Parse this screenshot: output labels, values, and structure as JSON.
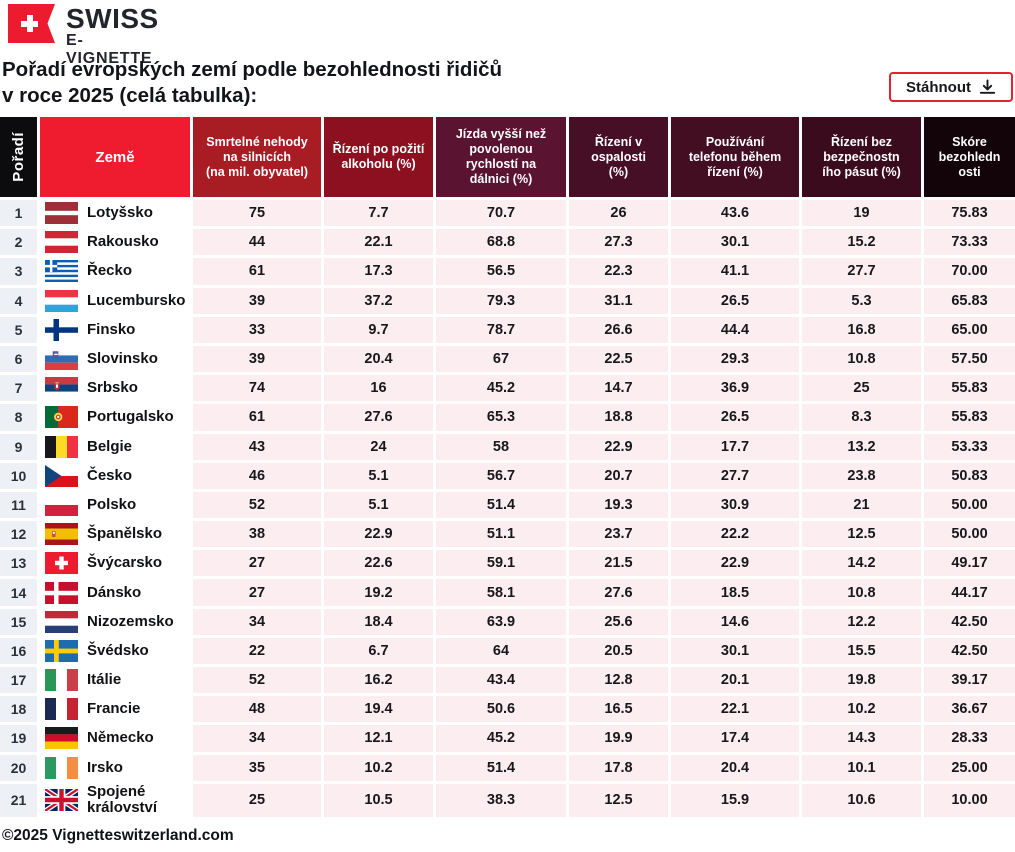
{
  "logo": {
    "line1": "SWISS",
    "line2": "E-VIGNETTE"
  },
  "title": {
    "line1": "Pořadí evropských zemí podle bezohlednosti řidičů",
    "line2": "v roce 2025 (celá tabulka):"
  },
  "download": {
    "label": "Stáhnout"
  },
  "footer": {
    "copyright": "©2025 Vignetteswitzerland.com"
  },
  "colors": {
    "brand_red": "#ed1b2f",
    "button_border": "#e32230",
    "rank_cell_bg": "#edf1f6",
    "value_cell_bg": "#fcedf0",
    "header_black": "#0c0c0e"
  },
  "table": {
    "columns": [
      {
        "id": "rank",
        "label": "Pořadí",
        "bg": "#0c0c0e",
        "vertical": true
      },
      {
        "id": "country",
        "label": "Země",
        "bg": "#ee1c2e",
        "big": true
      },
      {
        "id": "fatal",
        "lines": [
          "Smrtelné nehody",
          "na silnicích",
          "(na mil. obyvatel)"
        ],
        "bg": "#a81c24"
      },
      {
        "id": "alcohol",
        "lines": [
          "Řízení po požití",
          "alkoholu (%)"
        ],
        "bg": "#8c101f"
      },
      {
        "id": "speed",
        "lines": [
          "Jízda vyšší než",
          "povolenou",
          "rychlostí na",
          "dálnici (%)"
        ],
        "bg": "#5a1330"
      },
      {
        "id": "drowsy",
        "lines": [
          "Řízení v",
          "ospalosti",
          "(%)"
        ],
        "bg": "#470f25"
      },
      {
        "id": "phone",
        "lines": [
          "Používání",
          "telefonu během",
          "řízení (%)"
        ],
        "bg": "#430e22"
      },
      {
        "id": "seatbelt",
        "lines": [
          "Řízení bez",
          "bezpečnostn",
          "ího pásut (%)"
        ],
        "bg": "#3a0b1c"
      },
      {
        "id": "score",
        "lines": [
          "Skóre",
          "bezohledn",
          "osti"
        ],
        "bg": "#130409"
      }
    ],
    "rows": [
      {
        "rank": "1",
        "country": "Lotyšsko",
        "flag": "lv",
        "values": [
          "75",
          "7.7",
          "70.7",
          "26",
          "43.6",
          "19",
          "75.83"
        ]
      },
      {
        "rank": "2",
        "country": "Rakousko",
        "flag": "at",
        "values": [
          "44",
          "22.1",
          "68.8",
          "27.3",
          "30.1",
          "15.2",
          "73.33"
        ]
      },
      {
        "rank": "3",
        "country": "Řecko",
        "flag": "gr",
        "values": [
          "61",
          "17.3",
          "56.5",
          "22.3",
          "41.1",
          "27.7",
          "70.00"
        ]
      },
      {
        "rank": "4",
        "country": "Lucembursko",
        "flag": "lu",
        "values": [
          "39",
          "37.2",
          "79.3",
          "31.1",
          "26.5",
          "5.3",
          "65.83"
        ]
      },
      {
        "rank": "5",
        "country": "Finsko",
        "flag": "fi",
        "values": [
          "33",
          "9.7",
          "78.7",
          "26.6",
          "44.4",
          "16.8",
          "65.00"
        ]
      },
      {
        "rank": "6",
        "country": "Slovinsko",
        "flag": "si",
        "values": [
          "39",
          "20.4",
          "67",
          "22.5",
          "29.3",
          "10.8",
          "57.50"
        ]
      },
      {
        "rank": "7",
        "country": "Srbsko",
        "flag": "rs",
        "values": [
          "74",
          "16",
          "45.2",
          "14.7",
          "36.9",
          "25",
          "55.83"
        ]
      },
      {
        "rank": "8",
        "country": "Portugalsko",
        "flag": "pt",
        "values": [
          "61",
          "27.6",
          "65.3",
          "18.8",
          "26.5",
          "8.3",
          "55.83"
        ]
      },
      {
        "rank": "9",
        "country": "Belgie",
        "flag": "be",
        "values": [
          "43",
          "24",
          "58",
          "22.9",
          "17.7",
          "13.2",
          "53.33"
        ]
      },
      {
        "rank": "10",
        "country": "Česko",
        "flag": "cz",
        "values": [
          "46",
          "5.1",
          "56.7",
          "20.7",
          "27.7",
          "23.8",
          "50.83"
        ]
      },
      {
        "rank": "11",
        "country": "Polsko",
        "flag": "pl",
        "values": [
          "52",
          "5.1",
          "51.4",
          "19.3",
          "30.9",
          "21",
          "50.00"
        ]
      },
      {
        "rank": "12",
        "country": "Španělsko",
        "flag": "es",
        "values": [
          "38",
          "22.9",
          "51.1",
          "23.7",
          "22.2",
          "12.5",
          "50.00"
        ]
      },
      {
        "rank": "13",
        "country": "Švýcarsko",
        "flag": "ch",
        "values": [
          "27",
          "22.6",
          "59.1",
          "21.5",
          "22.9",
          "14.2",
          "49.17"
        ]
      },
      {
        "rank": "14",
        "country": "Dánsko",
        "flag": "dk",
        "values": [
          "27",
          "19.2",
          "58.1",
          "27.6",
          "18.5",
          "10.8",
          "44.17"
        ]
      },
      {
        "rank": "15",
        "country": "Nizozemsko",
        "flag": "nl",
        "values": [
          "34",
          "18.4",
          "63.9",
          "25.6",
          "14.6",
          "12.2",
          "42.50"
        ]
      },
      {
        "rank": "16",
        "country": "Švédsko",
        "flag": "se",
        "values": [
          "22",
          "6.7",
          "64",
          "20.5",
          "30.1",
          "15.5",
          "42.50"
        ]
      },
      {
        "rank": "17",
        "country": "Itálie",
        "flag": "it",
        "values": [
          "52",
          "16.2",
          "43.4",
          "12.8",
          "20.1",
          "19.8",
          "39.17"
        ]
      },
      {
        "rank": "18",
        "country": "Francie",
        "flag": "fr",
        "values": [
          "48",
          "19.4",
          "50.6",
          "16.5",
          "22.1",
          "10.2",
          "36.67"
        ]
      },
      {
        "rank": "19",
        "country": "Německo",
        "flag": "de",
        "values": [
          "34",
          "12.1",
          "45.2",
          "19.9",
          "17.4",
          "14.3",
          "28.33"
        ]
      },
      {
        "rank": "20",
        "country": "Irsko",
        "flag": "ie",
        "values": [
          "35",
          "10.2",
          "51.4",
          "17.8",
          "20.4",
          "10.1",
          "25.00"
        ]
      },
      {
        "rank": "21",
        "country": "Spojené království",
        "flag": "gb",
        "values": [
          "25",
          "10.5",
          "38.3",
          "12.5",
          "15.9",
          "10.6",
          "10.00"
        ]
      }
    ]
  }
}
